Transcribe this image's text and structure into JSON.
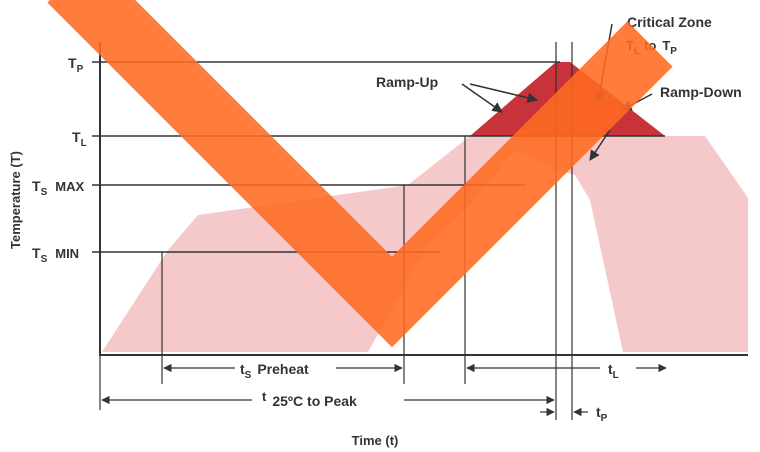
{
  "y_axis_labels": {
    "tp": {
      "main": "T",
      "sub": "P"
    },
    "tl": {
      "main": "T",
      "sub": "L"
    },
    "ts_max": {
      "main": "T",
      "sub": "S",
      "suffix": "MAX"
    },
    "ts_min": {
      "main": "T",
      "sub": "S",
      "suffix": "MIN"
    }
  },
  "axis_titles": {
    "y": "Temperature (T)",
    "x": "Time (t)"
  },
  "annotations": {
    "critical_zone": "Critical Zone",
    "critical_range": {
      "from_main": "T",
      "from_sub": "L",
      "to": "to",
      "to_main": "T",
      "to_sub": "P"
    },
    "ramp_up": "Ramp-Up",
    "ramp_down": "Ramp-Down"
  },
  "time_intervals": {
    "preheat": {
      "main": "t",
      "sub": "S",
      "label": "Preheat"
    },
    "time_above_liquidus": {
      "main": "t",
      "sub": "L"
    },
    "to_peak": {
      "prefix": "t",
      "label": "25ºC to Peak"
    },
    "time_at_peak": {
      "main": "t",
      "sub": "P"
    }
  },
  "colors": {
    "band": "#f5c9c9",
    "critical": "#c8333b",
    "lines": "#333333",
    "overlay_mark": "#ff6a21"
  }
}
